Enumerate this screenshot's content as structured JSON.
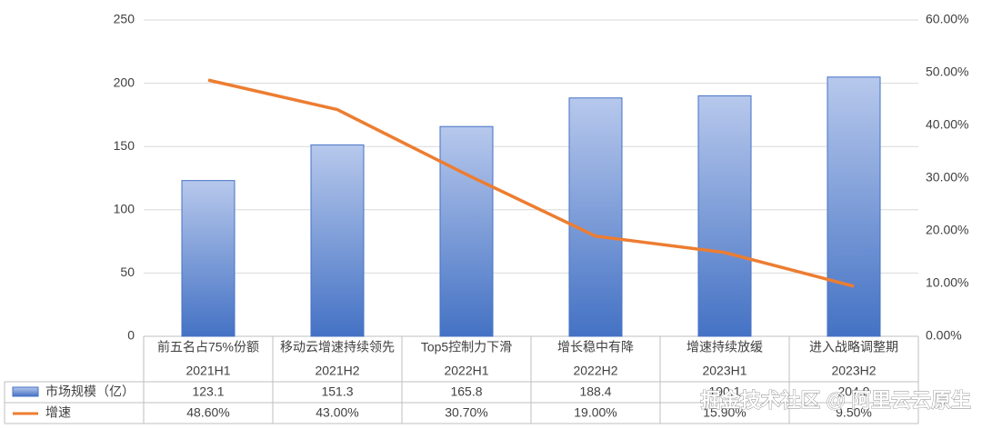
{
  "chart_data": {
    "type": "combo",
    "categories": [
      "2021H1",
      "2021H2",
      "2022H1",
      "2022H2",
      "2023H1",
      "2023H2"
    ],
    "annotations": [
      "前五名占75%份额",
      "移动云增速持续领先",
      "Top5控制力下滑",
      "增长稳中有降",
      "增速持续放缓",
      "进入战略调整期"
    ],
    "series": [
      {
        "name": "市场规模（亿）",
        "type": "bar",
        "color": "#4472c4",
        "values": [
          123.1,
          151.3,
          165.8,
          188.4,
          190.1,
          204.9
        ]
      },
      {
        "name": "增速",
        "type": "line",
        "axis": "y2",
        "color": "#ed7d31",
        "values": [
          48.6,
          43.0,
          30.7,
          19.0,
          15.9,
          9.5
        ],
        "value_labels": [
          "48.60%",
          "43.00%",
          "30.70%",
          "19.00%",
          "15.90%",
          "9.50%"
        ]
      }
    ],
    "ylim": [
      0,
      250
    ],
    "yticks": [
      0,
      50,
      100,
      150,
      200,
      250
    ],
    "y2lim": [
      0,
      60
    ],
    "y2ticks": [
      {
        "value": 0,
        "label": "0.00%"
      },
      {
        "value": 10,
        "label": "10.00%"
      },
      {
        "value": 20,
        "label": "20.00%"
      },
      {
        "value": 30,
        "label": "30.00%"
      },
      {
        "value": 40,
        "label": "40.00%"
      },
      {
        "value": 50,
        "label": "50.00%"
      },
      {
        "value": 60,
        "label": "60.00%"
      }
    ],
    "grid": true,
    "watermark": "掘金技术社区 @ 阿里云云原生"
  }
}
